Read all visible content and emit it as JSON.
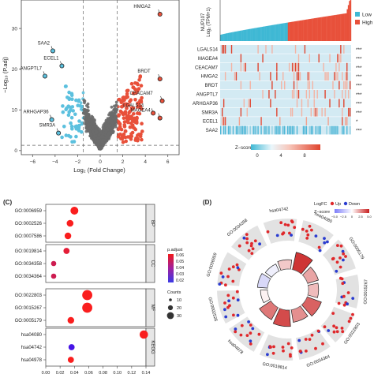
{
  "panels": {
    "c": "(C)",
    "d": "(D)"
  },
  "chart_data": [
    {
      "type": "scatter",
      "panel": "A",
      "xlabel": "Log₂ (Fold Change)",
      "ylabel": "−Log₁₀ (P.adj)",
      "xlim": [
        -7,
        7
      ],
      "ylim": [
        -1,
        37
      ],
      "xticks": [
        -6,
        -4,
        -2,
        0,
        2,
        4,
        6
      ],
      "yticks": [
        0,
        10,
        20,
        30
      ],
      "thresholds": {
        "logfc": 1.5,
        "padj_line": 1.3
      },
      "colors": {
        "down": "#5bc0de",
        "ns": "#6b6b6b",
        "up": "#e8503a"
      },
      "labeled_points": [
        {
          "label": "HMGA2",
          "x": 5.3,
          "y": 33.5
        },
        {
          "label": "SAA2",
          "x": -4.2,
          "y": 24.5
        },
        {
          "label": "ECEL1",
          "x": -3.4,
          "y": 20.8
        },
        {
          "label": "ANGPTL7",
          "x": -4.9,
          "y": 18.3
        },
        {
          "label": "BRDT",
          "x": 5.3,
          "y": 17.6
        },
        {
          "label": "CEACAM7",
          "x": 5.5,
          "y": 12.2
        },
        {
          "label": "LGALS14",
          "x": 4.7,
          "y": 9.2
        },
        {
          "label": "MAGEA4",
          "x": 5.3,
          "y": 8.0
        },
        {
          "label": "ARHGAP36",
          "x": -4.3,
          "y": 7.6
        },
        {
          "label": "SMR3A",
          "x": -3.7,
          "y": 4.3
        }
      ]
    },
    {
      "type": "heatmap",
      "panel": "B",
      "top_ylabel": "NUP107\nLog₂ (TPM+1)",
      "groups": [
        {
          "name": "Low",
          "color": "#3fb8d4"
        },
        {
          "name": "High",
          "color": "#e8503a"
        }
      ],
      "rows": [
        "LGALS14",
        "MAGEA4",
        "CEACAM7",
        "HMGA2",
        "BRDT",
        "ANGPTL7",
        "ARHGAP36",
        "SMR3A",
        "ECEL1",
        "SAA2"
      ],
      "significance": [
        "***",
        "***",
        "***",
        "***",
        "***",
        "***",
        "***",
        "***",
        "*",
        "***"
      ],
      "legend_title": "Z−score",
      "legend_ticks": [
        "0",
        "4",
        "8"
      ]
    },
    {
      "type": "dot",
      "panel": "C",
      "xlim": [
        0,
        0.14
      ],
      "xticks": [
        "0.00",
        "0.02",
        "0.04",
        "0.06",
        "0.08",
        "0.10",
        "0.12",
        "0.14"
      ],
      "facets": [
        {
          "name": "BP",
          "terms": [
            {
              "term": "GO:0006959",
              "x": 0.04,
              "count": 20,
              "padj": 0.06
            },
            {
              "term": "GO:0002526",
              "x": 0.034,
              "count": 15,
              "padj": 0.06
            },
            {
              "term": "GO:0007586",
              "x": 0.031,
              "count": 14,
              "padj": 0.06
            }
          ]
        },
        {
          "name": "CC",
          "terms": [
            {
              "term": "GO:0019814",
              "x": 0.029,
              "count": 12,
              "padj": 0.055
            },
            {
              "term": "GO:0034358",
              "x": 0.011,
              "count": 8,
              "padj": 0.05
            },
            {
              "term": "GO:0034364",
              "x": 0.011,
              "count": 8,
              "padj": 0.05
            }
          ]
        },
        {
          "name": "MF",
          "terms": [
            {
              "term": "GO:0022803",
              "x": 0.058,
              "count": 30,
              "padj": 0.06
            },
            {
              "term": "GO:0015267",
              "x": 0.058,
              "count": 30,
              "padj": 0.06
            },
            {
              "term": "GO:0005179",
              "x": 0.035,
              "count": 14,
              "padj": 0.06
            }
          ]
        },
        {
          "name": "KEGG",
          "terms": [
            {
              "term": "hsa04080",
              "x": 0.137,
              "count": 22,
              "padj": 0.06
            },
            {
              "term": "hsa04742",
              "x": 0.036,
              "count": 12,
              "padj": 0.02
            },
            {
              "term": "hsa04978",
              "x": 0.035,
              "count": 12,
              "padj": 0.06
            }
          ]
        }
      ],
      "color_legend": {
        "title": "p.adjust",
        "ticks": [
          "0.06",
          "0.05",
          "0.04",
          "0.03",
          "0.02"
        ]
      },
      "size_legend": {
        "title": "Counts",
        "ticks": [
          "10",
          "20",
          "30"
        ]
      }
    },
    {
      "type": "circos",
      "panel": "D",
      "legend": {
        "title": "LogFC",
        "up": "Up",
        "down": "Down"
      },
      "zscore_legend": {
        "title": "Z−score",
        "ticks": [
          "−5.0",
          "−2.5",
          "0",
          "2.5",
          "5.0"
        ]
      },
      "terms": [
        "hsa04080",
        "GO:0005179",
        "GO:0015267",
        "GO:0022803",
        "GO:0034364",
        "GO:0019814",
        "hsa04978",
        "GO:0002526",
        "GO:0006959",
        "GO:0034358",
        "hsa04742"
      ],
      "zscores": [
        4.5,
        2.0,
        1.5,
        3.5,
        2.5,
        4.0,
        3.0,
        0.3,
        -1.5,
        -0.6,
        1.2
      ]
    }
  ]
}
